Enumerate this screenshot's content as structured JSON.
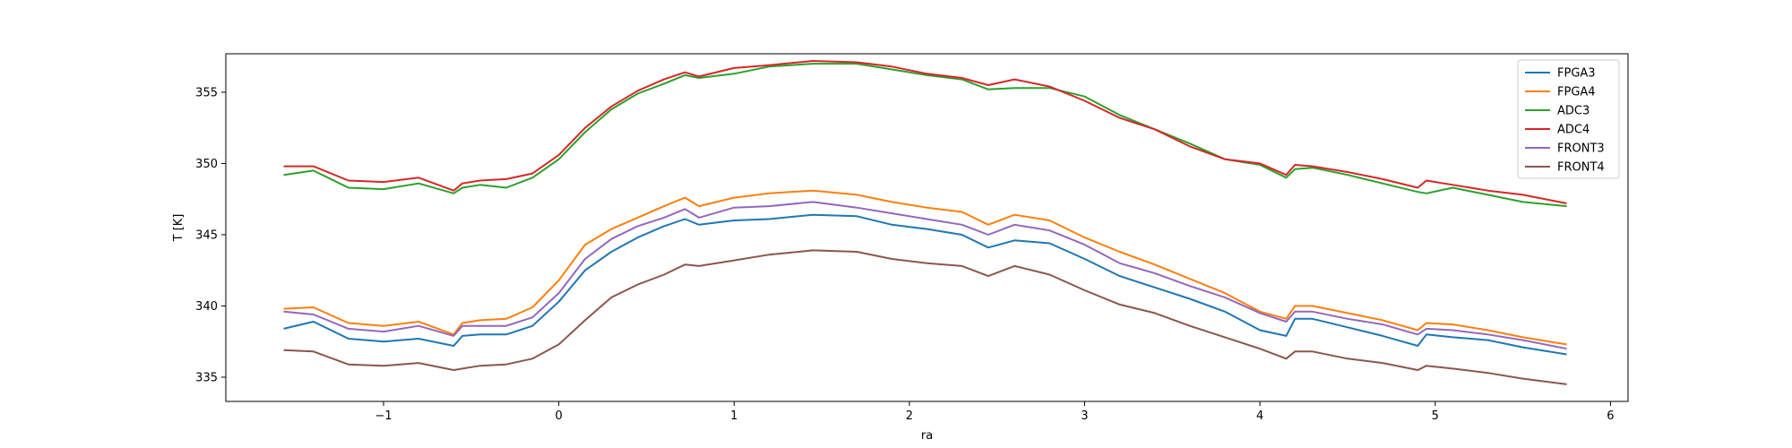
{
  "chart_data": {
    "type": "line",
    "title": "",
    "xlabel": "ra",
    "ylabel": "T [K]",
    "xlim": [
      -1.9,
      6.1
    ],
    "ylim": [
      333.3,
      357.7
    ],
    "xticks": [
      -1,
      0,
      1,
      2,
      3,
      4,
      5,
      6
    ],
    "xtick_labels": [
      "−1",
      "0",
      "1",
      "2",
      "3",
      "4",
      "5",
      "6"
    ],
    "yticks": [
      335,
      340,
      345,
      350,
      355
    ],
    "ytick_labels": [
      "335",
      "340",
      "345",
      "350",
      "355"
    ],
    "grid": false,
    "legend_position": "top-right",
    "x": [
      -1.57,
      -1.4,
      -1.2,
      -1.0,
      -0.8,
      -0.6,
      -0.55,
      -0.45,
      -0.3,
      -0.15,
      0.0,
      0.15,
      0.3,
      0.45,
      0.6,
      0.72,
      0.8,
      1.0,
      1.2,
      1.45,
      1.7,
      1.9,
      2.1,
      2.3,
      2.45,
      2.6,
      2.8,
      3.0,
      3.2,
      3.4,
      3.6,
      3.8,
      4.0,
      4.15,
      4.2,
      4.3,
      4.5,
      4.7,
      4.9,
      4.95,
      5.1,
      5.3,
      5.5,
      5.75
    ],
    "series": [
      {
        "name": "FPGA3",
        "color": "#1f77b4",
        "values": [
          338.4,
          338.9,
          337.7,
          337.5,
          337.7,
          337.2,
          337.9,
          338.0,
          338.0,
          338.6,
          340.3,
          342.5,
          343.8,
          344.8,
          345.6,
          346.1,
          345.7,
          346.0,
          346.1,
          346.4,
          346.3,
          345.7,
          345.4,
          345.0,
          344.1,
          344.6,
          344.4,
          343.3,
          342.1,
          341.3,
          340.5,
          339.6,
          338.3,
          337.9,
          339.1,
          339.1,
          338.5,
          337.9,
          337.2,
          338.0,
          337.8,
          337.6,
          337.1,
          336.6
        ]
      },
      {
        "name": "FPGA4",
        "color": "#ff7f0e",
        "values": [
          339.8,
          339.9,
          338.8,
          338.6,
          338.9,
          338.0,
          338.8,
          339.0,
          339.1,
          339.9,
          341.8,
          344.3,
          345.4,
          346.2,
          347.0,
          347.6,
          347.0,
          347.6,
          347.9,
          348.1,
          347.8,
          347.3,
          346.9,
          346.6,
          345.7,
          346.4,
          346.0,
          344.8,
          343.8,
          342.9,
          341.9,
          340.9,
          339.6,
          339.1,
          340.0,
          340.0,
          339.5,
          339.0,
          338.3,
          338.8,
          338.7,
          338.3,
          337.8,
          337.3
        ]
      },
      {
        "name": "ADC3",
        "color": "#2ca02c",
        "values": [
          349.2,
          349.5,
          348.3,
          348.2,
          348.6,
          347.9,
          348.3,
          348.5,
          348.3,
          349.0,
          350.3,
          352.2,
          353.8,
          354.9,
          355.6,
          356.2,
          356.0,
          356.3,
          356.8,
          357.0,
          357.0,
          356.6,
          356.2,
          355.9,
          355.2,
          355.3,
          355.3,
          354.7,
          353.4,
          352.4,
          351.4,
          350.3,
          349.9,
          349.0,
          349.6,
          349.7,
          349.2,
          348.6,
          348.0,
          347.9,
          348.3,
          347.8,
          347.3,
          347.0
        ]
      },
      {
        "name": "ADC4",
        "color": "#d62728",
        "values": [
          349.8,
          349.8,
          348.8,
          348.7,
          349.0,
          348.1,
          348.6,
          348.8,
          348.9,
          349.3,
          350.6,
          352.5,
          354.0,
          355.1,
          355.9,
          356.4,
          356.1,
          356.7,
          356.9,
          357.2,
          357.1,
          356.8,
          356.3,
          356.0,
          355.5,
          355.9,
          355.4,
          354.4,
          353.2,
          352.4,
          351.2,
          350.3,
          350.0,
          349.2,
          349.9,
          349.8,
          349.4,
          348.9,
          348.3,
          348.8,
          348.5,
          348.1,
          347.8,
          347.2
        ]
      },
      {
        "name": "FRONT3",
        "color": "#9467bd",
        "values": [
          339.6,
          339.4,
          338.4,
          338.2,
          338.6,
          337.9,
          338.6,
          338.6,
          338.6,
          339.2,
          340.9,
          343.3,
          344.7,
          345.6,
          346.2,
          346.8,
          346.2,
          346.9,
          347.0,
          347.3,
          346.9,
          346.5,
          346.1,
          345.7,
          345.0,
          345.7,
          345.3,
          344.3,
          343.0,
          342.3,
          341.4,
          340.6,
          339.5,
          338.9,
          339.6,
          339.6,
          339.1,
          338.7,
          338.0,
          338.4,
          338.3,
          338.0,
          337.6,
          337.0
        ]
      },
      {
        "name": "FRONT4",
        "color": "#8c564b",
        "values": [
          336.9,
          336.8,
          335.9,
          335.8,
          336.0,
          335.5,
          335.6,
          335.8,
          335.9,
          336.3,
          337.3,
          339.0,
          340.6,
          341.5,
          342.2,
          342.9,
          342.8,
          343.2,
          343.6,
          343.9,
          343.8,
          343.3,
          343.0,
          342.8,
          342.1,
          342.8,
          342.2,
          341.1,
          340.1,
          339.5,
          338.6,
          337.8,
          337.0,
          336.3,
          336.8,
          336.8,
          336.3,
          336.0,
          335.5,
          335.8,
          335.6,
          335.3,
          334.9,
          334.5
        ]
      }
    ]
  }
}
